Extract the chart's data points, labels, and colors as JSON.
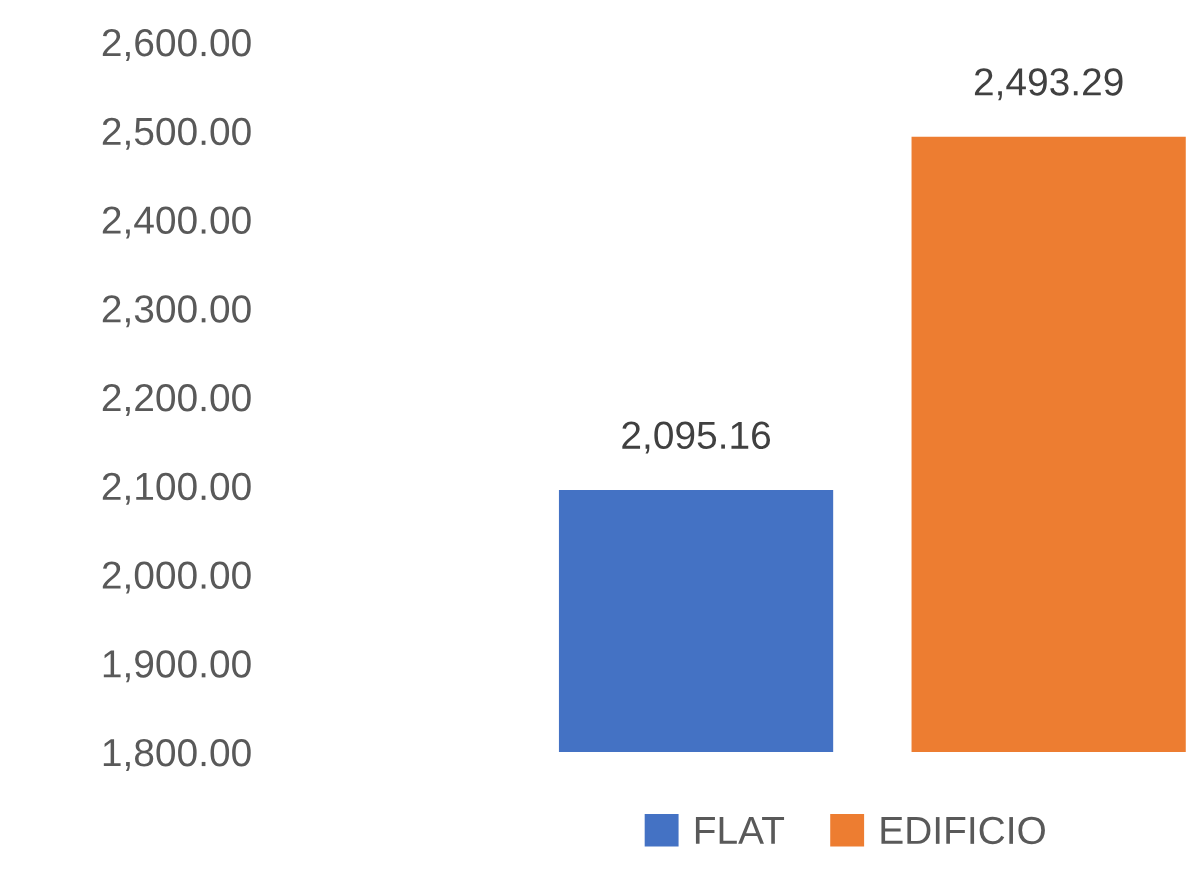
{
  "chart_data": {
    "type": "bar",
    "categories": [
      null
    ],
    "series": [
      {
        "name": "FLAT",
        "color": "#4472c4",
        "values": [
          2095.16
        ]
      },
      {
        "name": "EDIFICIO",
        "color": "#ed7d31",
        "values": [
          2493.29
        ]
      }
    ],
    "ylim": [
      1800,
      2600
    ],
    "yticks": [
      {
        "value": 1800,
        "label": "1,800.00"
      },
      {
        "value": 1900,
        "label": "1,900.00"
      },
      {
        "value": 2000,
        "label": "2,000.00"
      },
      {
        "value": 2100,
        "label": "2,100.00"
      },
      {
        "value": 2200,
        "label": "2,200.00"
      },
      {
        "value": 2300,
        "label": "2,300.00"
      },
      {
        "value": 2400,
        "label": "2,400.00"
      },
      {
        "value": 2500,
        "label": "2,500.00"
      },
      {
        "value": 2600,
        "label": "2,600.00"
      }
    ],
    "value_labels": [
      [
        "2,095.16"
      ],
      [
        "2,493.29"
      ]
    ],
    "grid": false,
    "legend": "bottom"
  }
}
